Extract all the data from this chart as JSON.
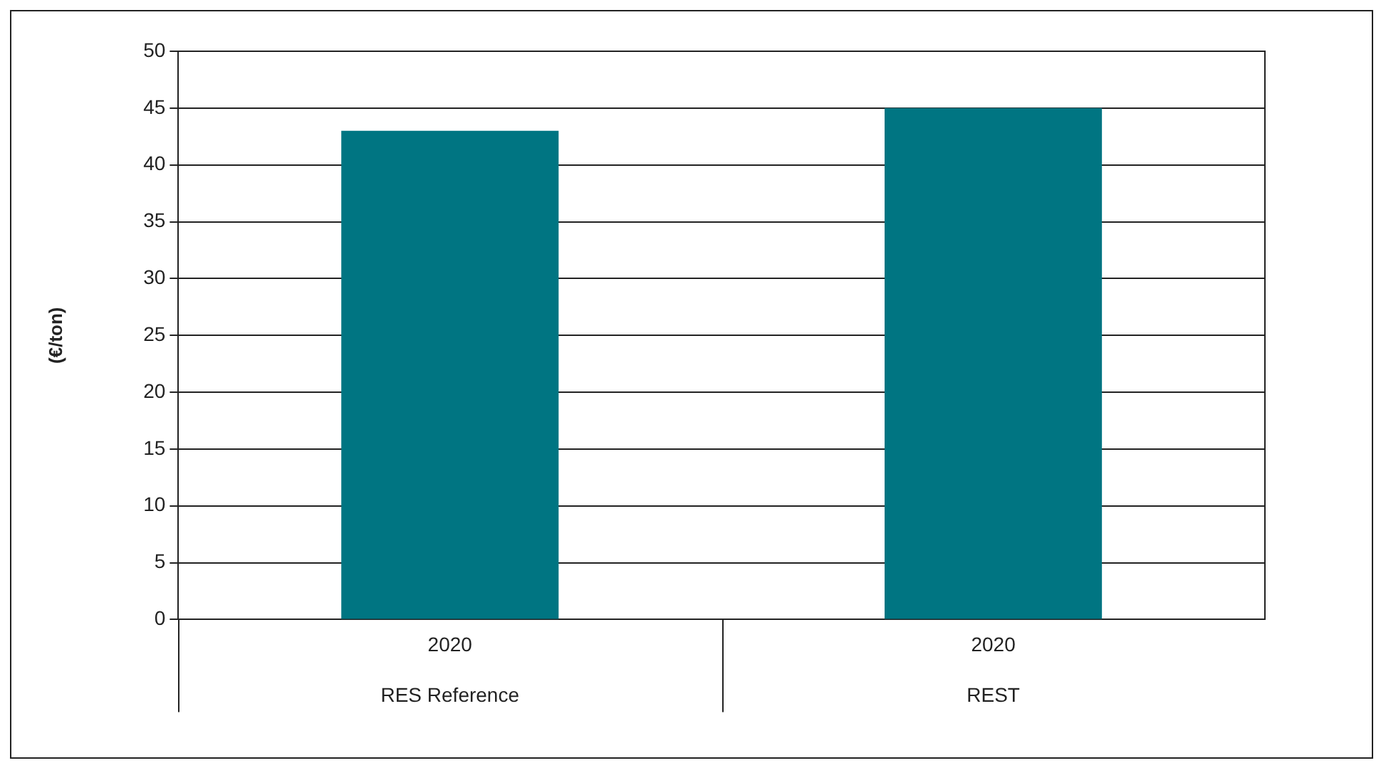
{
  "chart_data": {
    "type": "bar",
    "ylabel": "(€/ton)",
    "categories": [
      "2020",
      "2020"
    ],
    "values": [
      43,
      45
    ],
    "color": "#007582",
    "annotations": [
      "RES Reference",
      "REST"
    ],
    "ylim": [
      0,
      50
    ],
    "yticks": [
      0,
      5,
      10,
      15,
      20,
      25,
      30,
      35,
      40,
      45,
      50
    ],
    "grid": "y"
  }
}
